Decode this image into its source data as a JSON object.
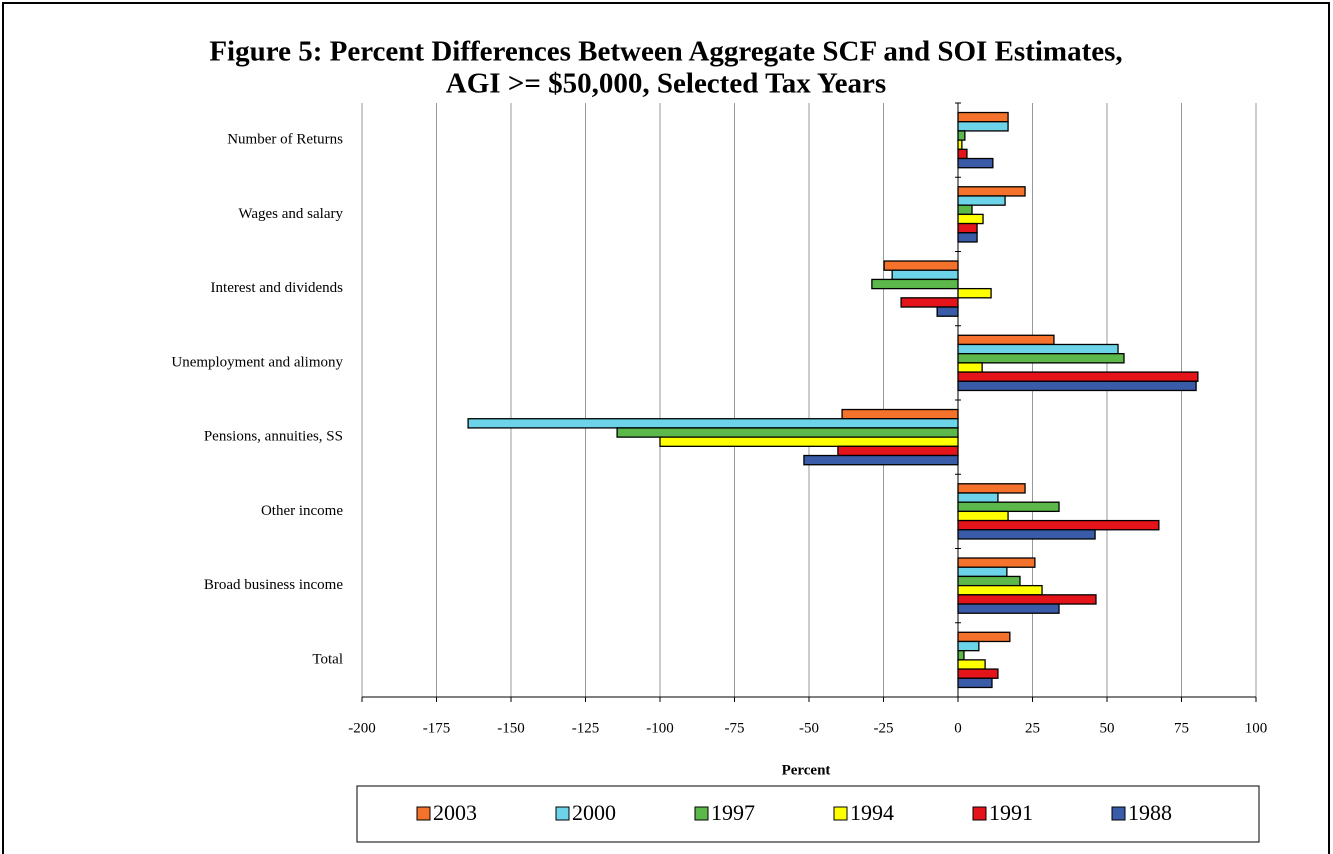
{
  "chart_data": {
    "type": "hbar",
    "title": [
      "Figure 5: Percent Differences Between Aggregate SCF and SOI Estimates,",
      "AGI >= $50,000, Selected Tax Years"
    ],
    "x_label": "Percent",
    "categories": [
      "Number of Returns",
      "Wages and salary",
      "Interest and dividends",
      "Unemployment and alimony",
      "Pensions, annuities, SS",
      "Other income",
      "Broad business income",
      "Total"
    ],
    "series": [
      {
        "name": "2003",
        "color": "#f4722b",
        "values": [
          16.8,
          22.5,
          -24.8,
          32.2,
          -38.9,
          22.5,
          25.8,
          17.4
        ]
      },
      {
        "name": "2000",
        "color": "#6dd3e8",
        "values": [
          16.8,
          15.8,
          -22.1,
          53.7,
          -164.4,
          13.4,
          16.4,
          7
        ]
      },
      {
        "name": "1997",
        "color": "#5cb84a",
        "values": [
          2.3,
          4.7,
          -28.9,
          55.7,
          -114.4,
          33.9,
          20.8,
          2
        ]
      },
      {
        "name": "1994",
        "color": "#ffff00",
        "values": [
          1.3,
          8.4,
          11.1,
          8.1,
          -100,
          16.8,
          28.2,
          9.1
        ]
      },
      {
        "name": "1991",
        "color": "#e5141b",
        "values": [
          3,
          6.4,
          -19.1,
          80.5,
          -40.3,
          67.4,
          46.3,
          13.4
        ]
      },
      {
        "name": "1988",
        "color": "#3a5ba8",
        "values": [
          11.7,
          6.4,
          -7,
          79.9,
          -51.7,
          46,
          33.9,
          11.4
        ]
      }
    ],
    "xlim": [
      -200,
      100
    ],
    "xticks": [
      -200,
      -175,
      -150,
      -125,
      -100,
      -75,
      -50,
      -25,
      0,
      25,
      50,
      75,
      100
    ],
    "grid": true
  }
}
